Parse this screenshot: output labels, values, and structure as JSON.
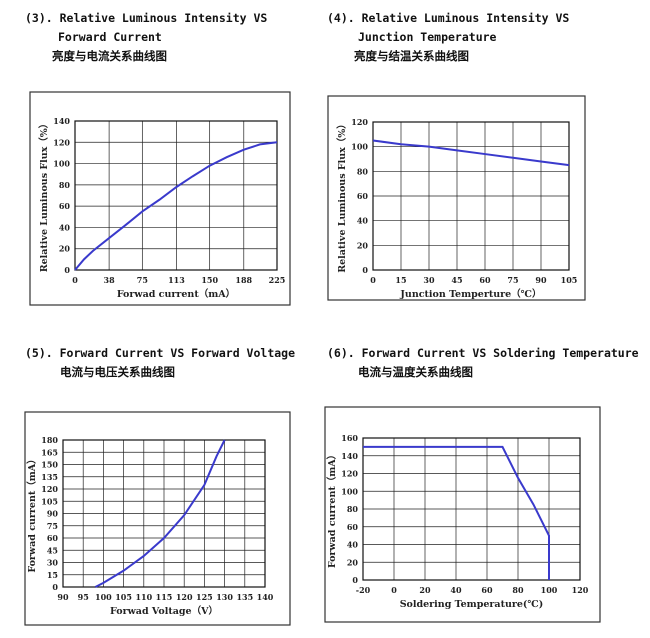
{
  "chart_data": [
    {
      "type": "line",
      "title_lines": [
        "(3). Relative Luminous Intensity VS",
        "Forward Current",
        "亮度与电流关系曲线图"
      ],
      "y_label": "Relative Luminous Flux（%）",
      "x_label": "Forwad current（mA）",
      "x": [
        0,
        10,
        20,
        38,
        56,
        75,
        94,
        113,
        131,
        150,
        169,
        188,
        206,
        225
      ],
      "values": [
        0,
        10,
        18,
        30,
        42,
        55,
        66,
        78,
        88,
        98,
        106,
        113,
        118,
        120
      ],
      "color": "#3a3acc",
      "xlim": [
        0,
        225
      ],
      "xticks": [
        0,
        38,
        75,
        113,
        150,
        188,
        225
      ],
      "ylim": [
        0,
        140
      ],
      "yticks": [
        0,
        20,
        40,
        60,
        80,
        100,
        120,
        140
      ],
      "grid": true
    },
    {
      "type": "line",
      "title_lines": [
        "(4). Relative Luminous Intensity VS",
        "Junction Temperature",
        "亮度与结温关系曲线图"
      ],
      "y_label": "Relative Luminous Flux（%）",
      "x_label": "Junction Temperture（℃）",
      "x": [
        0,
        15,
        30,
        45,
        60,
        75,
        90,
        105
      ],
      "values": [
        105,
        102,
        100,
        97,
        94,
        91,
        88,
        85
      ],
      "color": "#3a3acc",
      "xlim": [
        0,
        105
      ],
      "xticks": [
        0,
        15,
        30,
        45,
        60,
        75,
        90,
        105
      ],
      "ylim": [
        0,
        120
      ],
      "yticks": [
        0,
        20,
        40,
        60,
        80,
        100,
        120
      ],
      "grid": true
    },
    {
      "type": "line",
      "title_lines": [
        "(5). Forward Current VS Forward Voltage",
        "电流与电压关系曲线图"
      ],
      "y_label": "Forwad current（mA）",
      "x_label": "Forwad Voltage（V）",
      "x": [
        98,
        100,
        105,
        110,
        115,
        120,
        125,
        128,
        130
      ],
      "values": [
        0,
        5,
        20,
        38,
        60,
        88,
        125,
        160,
        180
      ],
      "color": "#3a3acc",
      "xlim": [
        90,
        140
      ],
      "xticks": [
        90,
        95,
        100,
        105,
        110,
        115,
        120,
        125,
        130,
        135,
        140
      ],
      "ylim": [
        0,
        180
      ],
      "yticks": [
        0,
        15,
        30,
        45,
        60,
        75,
        90,
        105,
        120,
        135,
        150,
        165,
        180
      ],
      "grid": true
    },
    {
      "type": "line",
      "title_lines": [
        "(6). Forward Current VS Soldering Temperature",
        "电流与温度关系曲线图"
      ],
      "y_label": "Forwad current（mA）",
      "x_label": "Soldering Temperature(℃)",
      "x": [
        -20,
        70,
        80,
        90,
        100,
        100
      ],
      "values": [
        150,
        150,
        115,
        85,
        50,
        0
      ],
      "color": "#3a3acc",
      "xlim": [
        -20,
        120
      ],
      "xticks": [
        -20,
        0,
        20,
        40,
        60,
        80,
        100,
        120
      ],
      "ylim": [
        0,
        160
      ],
      "yticks": [
        0,
        20,
        40,
        60,
        80,
        100,
        120,
        140,
        160
      ],
      "grid": true
    }
  ]
}
